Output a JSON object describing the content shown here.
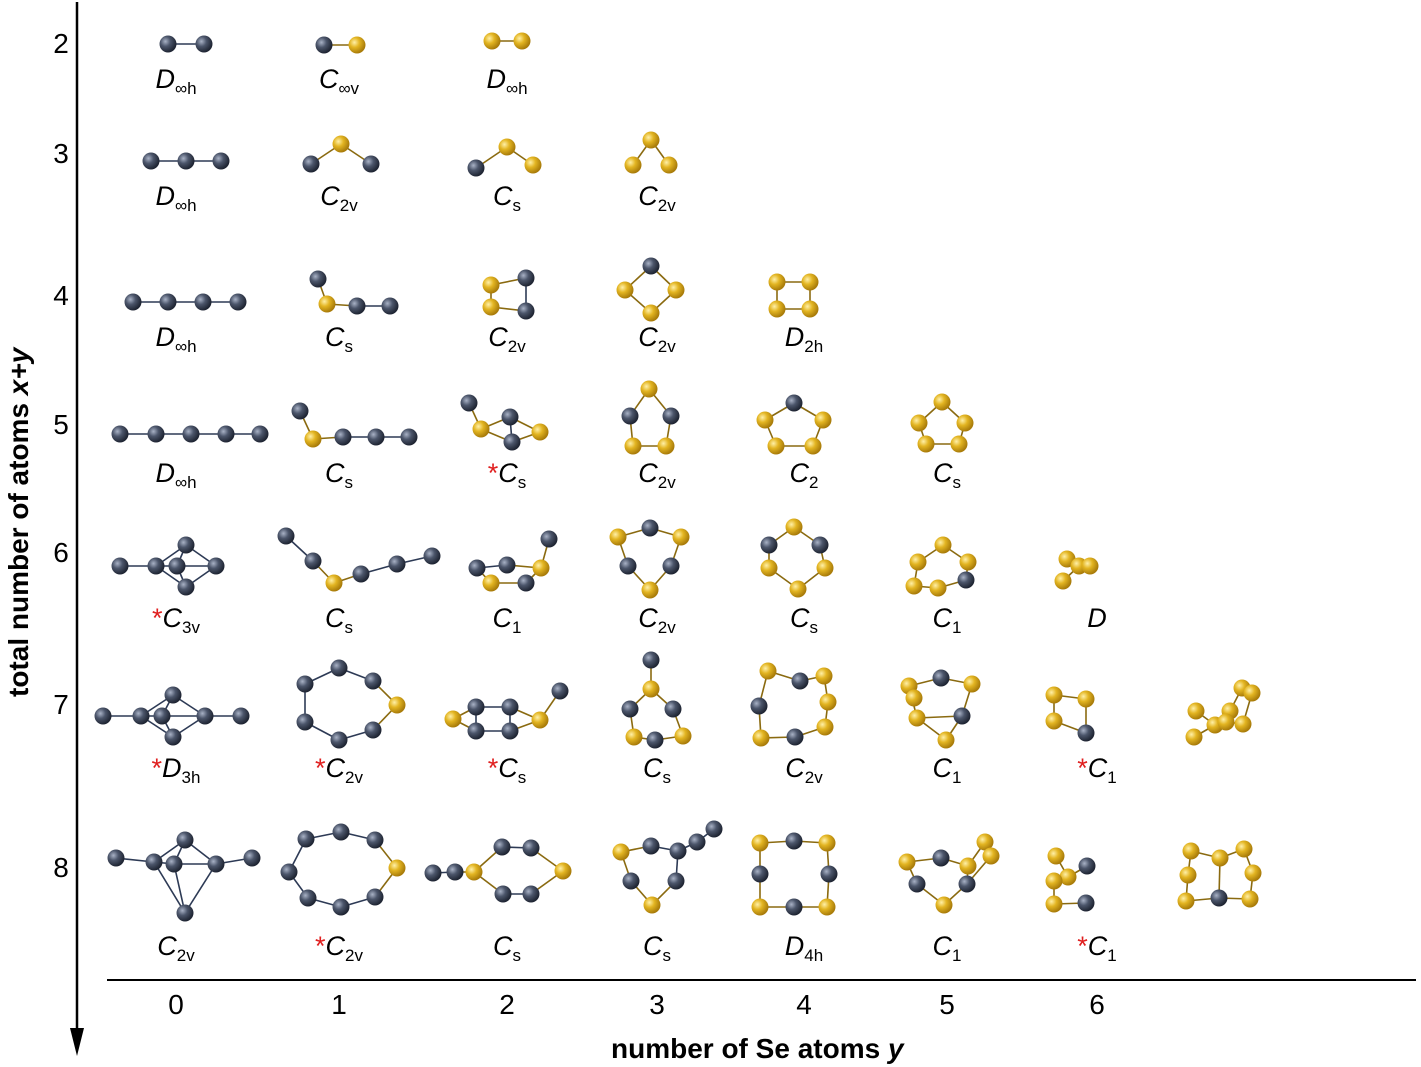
{
  "axes": {
    "x_label": "number of Se atoms ",
    "x_label_var": "y",
    "y_label": "total number of atoms ",
    "y_label_var": "x+y",
    "x_ticks": [
      "0",
      "1",
      "2",
      "3",
      "4",
      "5",
      "6"
    ],
    "y_ticks": [
      "2",
      "3",
      "4",
      "5",
      "6",
      "7",
      "8"
    ]
  },
  "colors": {
    "host_atom": "#3d4659",
    "se_atom": "#e0b020",
    "bond": "#2d3a55",
    "star": "#e02020",
    "axis": "#000000"
  },
  "clusters": [
    {
      "n": 2,
      "y": 0,
      "symbol": "D",
      "sub": "∞h",
      "star": false,
      "shape": "linear-2"
    },
    {
      "n": 2,
      "y": 1,
      "symbol": "C",
      "sub": "∞v",
      "star": false,
      "shape": "linear-2"
    },
    {
      "n": 2,
      "y": 2,
      "symbol": "D",
      "sub": "∞h",
      "star": false,
      "shape": "linear-2"
    },
    {
      "n": 3,
      "y": 0,
      "symbol": "D",
      "sub": "∞h",
      "star": false,
      "shape": "linear-3"
    },
    {
      "n": 3,
      "y": 1,
      "symbol": "C",
      "sub": "2v",
      "star": false,
      "shape": "bent-3"
    },
    {
      "n": 3,
      "y": 2,
      "symbol": "C",
      "sub": "s",
      "star": false,
      "shape": "bent-3"
    },
    {
      "n": 3,
      "y": 3,
      "symbol": "C",
      "sub": "2v",
      "star": false,
      "shape": "bent-3"
    },
    {
      "n": 4,
      "y": 0,
      "symbol": "D",
      "sub": "∞h",
      "star": false,
      "shape": "linear-4"
    },
    {
      "n": 4,
      "y": 1,
      "symbol": "C",
      "sub": "s",
      "star": false,
      "shape": "chain-4"
    },
    {
      "n": 4,
      "y": 2,
      "symbol": "C",
      "sub": "2v",
      "star": false,
      "shape": "square-4"
    },
    {
      "n": 4,
      "y": 3,
      "symbol": "C",
      "sub": "2v",
      "star": false,
      "shape": "rhomb-4"
    },
    {
      "n": 4,
      "y": 4,
      "symbol": "D",
      "sub": "2h",
      "star": false,
      "shape": "square-4"
    },
    {
      "n": 5,
      "y": 0,
      "symbol": "D",
      "sub": "∞h",
      "star": false,
      "shape": "linear-5"
    },
    {
      "n": 5,
      "y": 1,
      "symbol": "C",
      "sub": "s",
      "star": false,
      "shape": "chain-5"
    },
    {
      "n": 5,
      "y": 2,
      "symbol": "C",
      "sub": "s",
      "star": true,
      "shape": "cage-5"
    },
    {
      "n": 5,
      "y": 3,
      "symbol": "C",
      "sub": "2v",
      "star": false,
      "shape": "ring-5"
    },
    {
      "n": 5,
      "y": 4,
      "symbol": "C",
      "sub": "2",
      "star": false,
      "shape": "ring-5"
    },
    {
      "n": 5,
      "y": 5,
      "symbol": "C",
      "sub": "s",
      "star": false,
      "shape": "ring-5"
    },
    {
      "n": 6,
      "y": 0,
      "symbol": "C",
      "sub": "3v",
      "star": true,
      "shape": "bipyramid-6"
    },
    {
      "n": 6,
      "y": 1,
      "symbol": "C",
      "sub": "s",
      "star": false,
      "shape": "zigzag-6"
    },
    {
      "n": 6,
      "y": 2,
      "symbol": "C",
      "sub": "1",
      "star": false,
      "shape": "cage-6"
    },
    {
      "n": 6,
      "y": 3,
      "symbol": "C",
      "sub": "2v",
      "star": false,
      "shape": "ring-6"
    },
    {
      "n": 6,
      "y": 4,
      "symbol": "C",
      "sub": "s",
      "star": false,
      "shape": "ring-6"
    },
    {
      "n": 6,
      "y": 5,
      "symbol": "C",
      "sub": "1",
      "star": false,
      "shape": "ring-6"
    },
    {
      "n": 6,
      "y": 6,
      "symbol": "D",
      "sub": "",
      "star": false,
      "shape": "clipped-6"
    },
    {
      "n": 7,
      "y": 0,
      "symbol": "D",
      "sub": "3h",
      "star": true,
      "shape": "bipyramid-7"
    },
    {
      "n": 7,
      "y": 1,
      "symbol": "C",
      "sub": "2v",
      "star": true,
      "shape": "ring-7"
    },
    {
      "n": 7,
      "y": 2,
      "symbol": "C",
      "sub": "s",
      "star": true,
      "shape": "cage-7"
    },
    {
      "n": 7,
      "y": 3,
      "symbol": "C",
      "sub": "s",
      "star": false,
      "shape": "ring-tail-7"
    },
    {
      "n": 7,
      "y": 4,
      "symbol": "C",
      "sub": "2v",
      "star": false,
      "shape": "ring-7"
    },
    {
      "n": 7,
      "y": 5,
      "symbol": "C",
      "sub": "1",
      "star": false,
      "shape": "cage-7b"
    },
    {
      "n": 7,
      "y": 6,
      "symbol": "C",
      "sub": "1",
      "star": true,
      "shape": "clipped-7"
    },
    {
      "n": 7,
      "y": 7,
      "symbol": "",
      "sub": "",
      "star": false,
      "shape": "cage-7c"
    },
    {
      "n": 8,
      "y": 0,
      "symbol": "C",
      "sub": "2v",
      "star": false,
      "shape": "bipyramid-8"
    },
    {
      "n": 8,
      "y": 1,
      "symbol": "C",
      "sub": "2v",
      "star": true,
      "shape": "ring-8"
    },
    {
      "n": 8,
      "y": 2,
      "symbol": "C",
      "sub": "s",
      "star": false,
      "shape": "ring-tail-8"
    },
    {
      "n": 8,
      "y": 3,
      "symbol": "C",
      "sub": "s",
      "star": false,
      "shape": "ring-tail-8b"
    },
    {
      "n": 8,
      "y": 4,
      "symbol": "D",
      "sub": "4h",
      "star": false,
      "shape": "ring-8-square"
    },
    {
      "n": 8,
      "y": 5,
      "symbol": "C",
      "sub": "1",
      "star": false,
      "shape": "cage-8"
    },
    {
      "n": 8,
      "y": 6,
      "symbol": "C",
      "sub": "1",
      "star": true,
      "shape": "clipped-8"
    },
    {
      "n": 8,
      "y": 7,
      "symbol": "",
      "sub": "",
      "star": false,
      "shape": "cage-8b"
    }
  ]
}
